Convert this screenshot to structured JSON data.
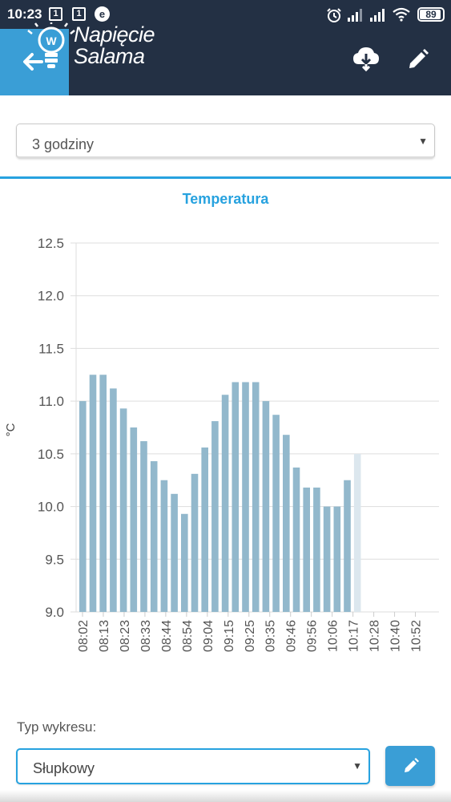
{
  "status_bar": {
    "time": "10:23",
    "notification_1": "1",
    "notification_2": "1",
    "app_icon_letter": "e",
    "battery_percent": "89",
    "icons": [
      "alarm-icon",
      "signal-icon",
      "signal-icon",
      "wifi-icon",
      "battery-icon"
    ]
  },
  "header": {
    "logo_line1": "Napięcie",
    "logo_line2": "Salama",
    "logo_badge_letter": "W",
    "back_icon": "arrow-left-icon",
    "download_icon": "cloud-download-icon",
    "edit_icon": "pencil-icon"
  },
  "range_select": {
    "value": "3 godziny"
  },
  "chart_title": "Temperatura",
  "chart_data": {
    "type": "bar",
    "title": "Temperatura",
    "xlabel": "",
    "ylabel": "°C",
    "ylim": [
      9.0,
      12.5
    ],
    "y_ticks": [
      "12.5",
      "12.0",
      "11.5",
      "11.0",
      "10.5",
      "10.0",
      "9.5",
      "9.0"
    ],
    "x_tick_labels": [
      "08:02",
      "08:13",
      "08:23",
      "08:33",
      "08:44",
      "08:54",
      "09:04",
      "09:15",
      "09:25",
      "09:35",
      "09:46",
      "09:56",
      "10:06",
      "10:17",
      "10:28",
      "10:40",
      "10:52"
    ],
    "grid": true,
    "bar_color": "#92b8cc",
    "highlight_color": "#dce7ee",
    "values": [
      11.0,
      11.25,
      11.25,
      11.12,
      10.93,
      10.75,
      10.62,
      10.43,
      10.25,
      10.12,
      9.93,
      10.31,
      10.56,
      10.81,
      11.06,
      11.18,
      11.18,
      11.18,
      11.0,
      10.87,
      10.68,
      10.37,
      10.18,
      10.18,
      10.0,
      10.0,
      10.25,
      10.5
    ],
    "highlighted_index": 27
  },
  "chart_type": {
    "label": "Typ wykresu:",
    "value": "Słupkowy",
    "edit_icon": "pencil-icon"
  },
  "colors": {
    "header_bg": "#233044",
    "accent": "#27a2df",
    "button_bg": "#3a9ed6"
  }
}
